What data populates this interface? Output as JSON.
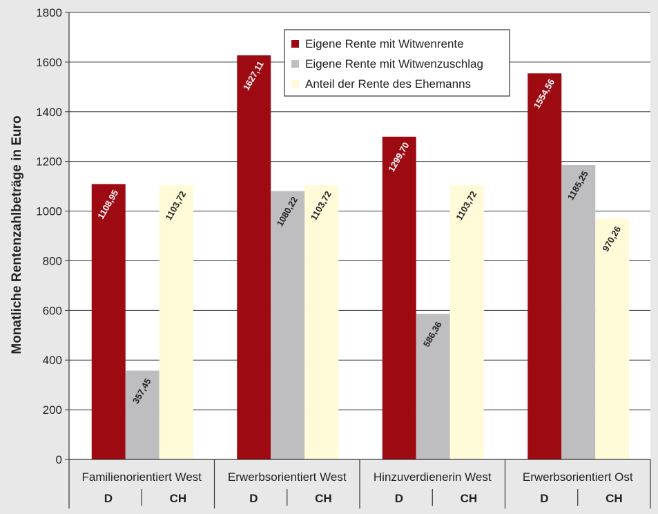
{
  "chart_data": {
    "type": "bar",
    "ylabel": "Monatliche Rentenzahlbeträge in Euro",
    "xlabel": "",
    "ylim": [
      0,
      1800
    ],
    "y_ticks": [
      0,
      200,
      400,
      600,
      800,
      1000,
      1200,
      1400,
      1600,
      1800
    ],
    "grid": true,
    "legend_position": "top-right",
    "categories": [
      "Familienorientiert West",
      "Erwerbsorientiert West",
      "Hinzuverdienerin West",
      "Erwerbsorientiert Ost"
    ],
    "country_labels": [
      "D",
      "CH"
    ],
    "series": [
      {
        "name": "Eigene Rente mit Witwenrente",
        "color": "#9e0a12",
        "label_color": "#ffffff",
        "values": [
          1108.95,
          1627.11,
          1299.7,
          1554.56
        ],
        "labels": [
          "1108,95",
          "1627,11",
          "1299,70",
          "1554,56"
        ]
      },
      {
        "name": "Eigene Rente mit Witwenzuschlag",
        "color": "#bebec0",
        "label_color": "#222222",
        "values": [
          357.45,
          1080.22,
          586.36,
          1185.25
        ],
        "labels": [
          "357,45",
          "1080,22",
          "586,36",
          "1185,25"
        ]
      },
      {
        "name": "Anteil der Rente des Ehemanns",
        "color": "#fffad8",
        "label_color": "#222222",
        "values": [
          1103.72,
          1103.72,
          1103.72,
          970.26
        ],
        "labels": [
          "1103,72",
          "1103,72",
          "1103,72",
          "970,26"
        ]
      }
    ]
  }
}
